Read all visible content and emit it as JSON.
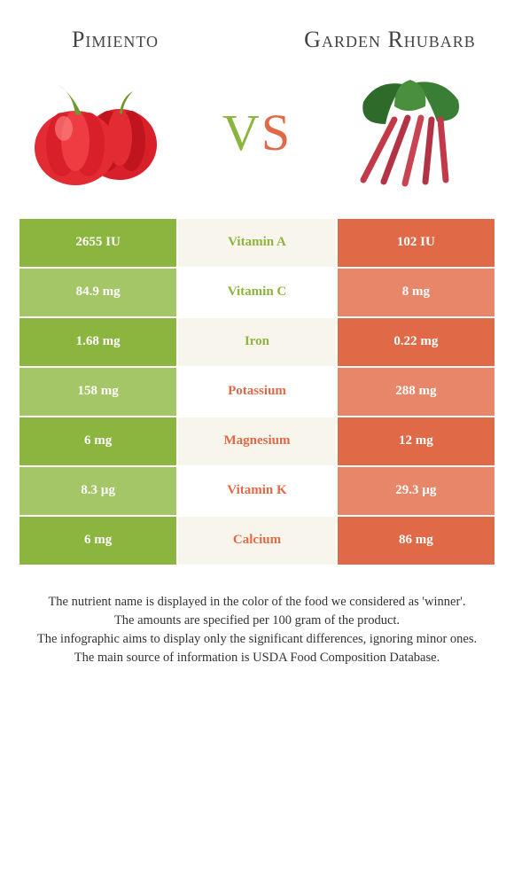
{
  "colors": {
    "green": "#8bb53f",
    "orange": "#e06a47",
    "green_row_odd": "#8bb53f",
    "green_row_even": "#a4c667",
    "orange_row_odd": "#e06a47",
    "orange_row_even": "#e78668",
    "mid_row_odd": "#f8f6ec",
    "mid_row_even": "#ffffff"
  },
  "foods": {
    "left": {
      "name": "Pimiento"
    },
    "right": {
      "name": "Garden Rhubarb"
    }
  },
  "vs_label": {
    "v": "V",
    "s": "S"
  },
  "rows": [
    {
      "nutrient": "Vitamin A",
      "left": "2655 IU",
      "right": "102 IU",
      "winner": "left"
    },
    {
      "nutrient": "Vitamin C",
      "left": "84.9 mg",
      "right": "8 mg",
      "winner": "left"
    },
    {
      "nutrient": "Iron",
      "left": "1.68 mg",
      "right": "0.22 mg",
      "winner": "left"
    },
    {
      "nutrient": "Potassium",
      "left": "158 mg",
      "right": "288 mg",
      "winner": "right"
    },
    {
      "nutrient": "Magnesium",
      "left": "6 mg",
      "right": "12 mg",
      "winner": "right"
    },
    {
      "nutrient": "Vitamin K",
      "left": "8.3 µg",
      "right": "29.3 µg",
      "winner": "right"
    },
    {
      "nutrient": "Calcium",
      "left": "6 mg",
      "right": "86 mg",
      "winner": "right"
    }
  ],
  "notes": [
    "The nutrient name is displayed in the color of the food we considered as 'winner'.",
    "The amounts are specified per 100 gram of the product.",
    "The infographic aims to display only the significant differences, ignoring minor ones.",
    "The main source of information is USDA Food Composition Database."
  ]
}
